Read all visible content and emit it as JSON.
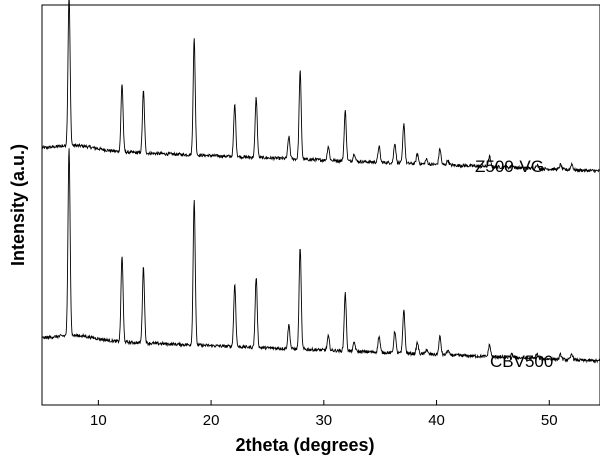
{
  "chart_data": {
    "type": "line",
    "xlabel": "2theta (degrees)",
    "ylabel": "Intensity (a.u.)",
    "xlim": [
      5,
      54.5
    ],
    "x_ticks": [
      10,
      20,
      30,
      40,
      50
    ],
    "y_ticks_shown": false,
    "grid": false,
    "legend": "none",
    "series": [
      {
        "name": "Z500-VG",
        "color": "#000000",
        "baseline": 0.64,
        "decay": 0.055,
        "peaks": [
          {
            "x": 7.4,
            "h": 0.375
          },
          {
            "x": 12.1,
            "h": 0.17
          },
          {
            "x": 14.0,
            "h": 0.155
          },
          {
            "x": 18.5,
            "h": 0.29
          },
          {
            "x": 22.1,
            "h": 0.13
          },
          {
            "x": 24.0,
            "h": 0.15
          },
          {
            "x": 26.9,
            "h": 0.055
          },
          {
            "x": 27.9,
            "h": 0.22
          },
          {
            "x": 30.4,
            "h": 0.035
          },
          {
            "x": 31.9,
            "h": 0.125
          },
          {
            "x": 32.7,
            "h": 0.02
          },
          {
            "x": 34.9,
            "h": 0.04
          },
          {
            "x": 36.3,
            "h": 0.05
          },
          {
            "x": 37.1,
            "h": 0.1
          },
          {
            "x": 38.3,
            "h": 0.025
          },
          {
            "x": 39.1,
            "h": 0.012
          },
          {
            "x": 40.3,
            "h": 0.04
          },
          {
            "x": 41.0,
            "h": 0.012
          },
          {
            "x": 44.7,
            "h": 0.025
          },
          {
            "x": 46.7,
            "h": 0.008
          },
          {
            "x": 48.9,
            "h": 0.01
          },
          {
            "x": 51.0,
            "h": 0.012
          },
          {
            "x": 52.0,
            "h": 0.015
          }
        ]
      },
      {
        "name": "CBV500",
        "color": "#000000",
        "baseline": 0.165,
        "decay": 0.055,
        "peaks": [
          {
            "x": 7.4,
            "h": 0.47
          },
          {
            "x": 12.1,
            "h": 0.215
          },
          {
            "x": 14.0,
            "h": 0.19
          },
          {
            "x": 18.5,
            "h": 0.365
          },
          {
            "x": 22.1,
            "h": 0.155
          },
          {
            "x": 24.0,
            "h": 0.175
          },
          {
            "x": 26.9,
            "h": 0.06
          },
          {
            "x": 27.9,
            "h": 0.255
          },
          {
            "x": 30.4,
            "h": 0.035
          },
          {
            "x": 31.9,
            "h": 0.145
          },
          {
            "x": 32.7,
            "h": 0.022
          },
          {
            "x": 34.9,
            "h": 0.04
          },
          {
            "x": 36.3,
            "h": 0.055
          },
          {
            "x": 37.1,
            "h": 0.11
          },
          {
            "x": 38.3,
            "h": 0.028
          },
          {
            "x": 39.1,
            "h": 0.012
          },
          {
            "x": 40.3,
            "h": 0.045
          },
          {
            "x": 41.0,
            "h": 0.012
          },
          {
            "x": 44.7,
            "h": 0.03
          },
          {
            "x": 46.7,
            "h": 0.008
          },
          {
            "x": 48.9,
            "h": 0.012
          },
          {
            "x": 51.0,
            "h": 0.012
          },
          {
            "x": 52.0,
            "h": 0.015
          }
        ]
      }
    ]
  }
}
